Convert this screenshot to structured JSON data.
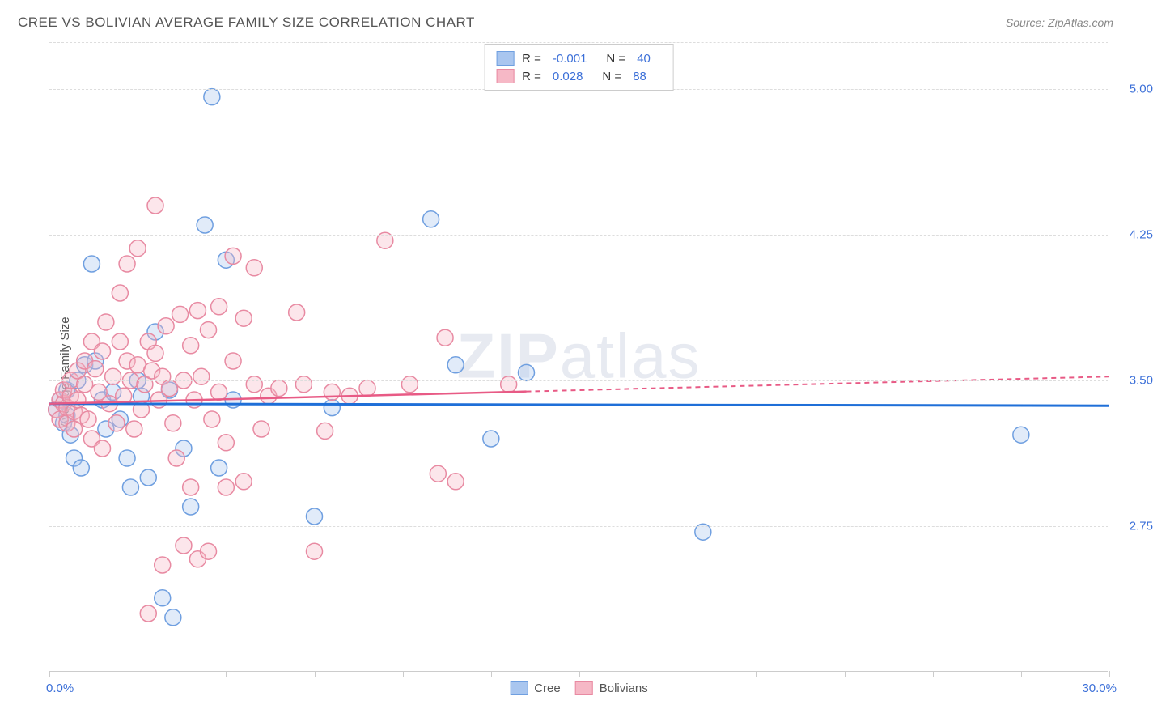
{
  "title": "CREE VS BOLIVIAN AVERAGE FAMILY SIZE CORRELATION CHART",
  "source_label": "Source: ZipAtlas.com",
  "ylabel": "Average Family Size",
  "watermark": "ZIPatlas",
  "chart": {
    "type": "scatter",
    "background_color": "#ffffff",
    "grid_color": "#dddddd",
    "axis_color": "#cccccc",
    "xlim": [
      0,
      30
    ],
    "ylim": [
      2.0,
      5.25
    ],
    "y_gridlines": [
      2.75,
      3.5,
      4.25,
      5.0
    ],
    "ytick_labels": [
      "2.75",
      "3.50",
      "4.25",
      "5.00"
    ],
    "xtick_positions": [
      0,
      2.5,
      5,
      7.5,
      10,
      12.5,
      15,
      17.5,
      20,
      22.5,
      25,
      27.5,
      30
    ],
    "xaxis_min_label": "0.0%",
    "xaxis_max_label": "30.0%",
    "ytick_color": "#3b6fd8",
    "xtick_color": "#3b6fd8",
    "marker_radius": 10,
    "marker_fill_opacity": 0.35,
    "marker_stroke_width": 1.5,
    "series": [
      {
        "name": "Cree",
        "color_fill": "#a9c6ef",
        "color_stroke": "#6f9fe0",
        "trend_color": "#1f6fd8",
        "trend_width": 3,
        "r_value": "-0.001",
        "n_value": "40",
        "trend": {
          "x1": 0,
          "y1": 3.38,
          "x2": 30,
          "y2": 3.37
        },
        "trend_dash_after_x": 30,
        "points": [
          [
            0.2,
            3.35
          ],
          [
            0.3,
            3.4
          ],
          [
            0.4,
            3.28
          ],
          [
            0.5,
            3.32
          ],
          [
            0.5,
            3.45
          ],
          [
            0.6,
            3.22
          ],
          [
            0.7,
            3.1
          ],
          [
            0.8,
            3.5
          ],
          [
            0.9,
            3.05
          ],
          [
            1.0,
            3.58
          ],
          [
            1.2,
            4.1
          ],
          [
            1.3,
            3.6
          ],
          [
            1.5,
            3.4
          ],
          [
            1.6,
            3.25
          ],
          [
            1.8,
            3.44
          ],
          [
            2.0,
            3.3
          ],
          [
            2.2,
            3.1
          ],
          [
            2.3,
            2.95
          ],
          [
            2.5,
            3.5
          ],
          [
            2.6,
            3.42
          ],
          [
            2.8,
            3.0
          ],
          [
            3.0,
            3.75
          ],
          [
            3.2,
            2.38
          ],
          [
            3.5,
            2.28
          ],
          [
            3.4,
            3.45
          ],
          [
            3.8,
            3.15
          ],
          [
            4.0,
            2.85
          ],
          [
            4.4,
            4.3
          ],
          [
            4.6,
            4.96
          ],
          [
            4.8,
            3.05
          ],
          [
            5.0,
            4.12
          ],
          [
            5.2,
            3.4
          ],
          [
            7.5,
            2.8
          ],
          [
            8.0,
            3.36
          ],
          [
            10.8,
            4.33
          ],
          [
            11.5,
            3.58
          ],
          [
            12.5,
            3.2
          ],
          [
            13.5,
            3.54
          ],
          [
            18.5,
            2.72
          ],
          [
            27.5,
            3.22
          ]
        ]
      },
      {
        "name": "Bolivians",
        "color_fill": "#f6b8c6",
        "color_stroke": "#e88aa2",
        "trend_color": "#e85a85",
        "trend_width": 2.5,
        "r_value": "0.028",
        "n_value": "88",
        "trend": {
          "x1": 0,
          "y1": 3.38,
          "x2": 30,
          "y2": 3.52
        },
        "trend_dash_after_x": 13.5,
        "points": [
          [
            0.2,
            3.35
          ],
          [
            0.3,
            3.4
          ],
          [
            0.3,
            3.3
          ],
          [
            0.4,
            3.38
          ],
          [
            0.4,
            3.45
          ],
          [
            0.5,
            3.36
          ],
          [
            0.5,
            3.28
          ],
          [
            0.6,
            3.42
          ],
          [
            0.6,
            3.5
          ],
          [
            0.7,
            3.34
          ],
          [
            0.7,
            3.25
          ],
          [
            0.8,
            3.4
          ],
          [
            0.8,
            3.55
          ],
          [
            0.9,
            3.32
          ],
          [
            1.0,
            3.48
          ],
          [
            1.0,
            3.6
          ],
          [
            1.1,
            3.3
          ],
          [
            1.2,
            3.7
          ],
          [
            1.2,
            3.2
          ],
          [
            1.3,
            3.56
          ],
          [
            1.4,
            3.44
          ],
          [
            1.5,
            3.65
          ],
          [
            1.5,
            3.15
          ],
          [
            1.6,
            3.8
          ],
          [
            1.7,
            3.38
          ],
          [
            1.8,
            3.52
          ],
          [
            1.9,
            3.28
          ],
          [
            2.0,
            3.7
          ],
          [
            2.0,
            3.95
          ],
          [
            2.1,
            3.42
          ],
          [
            2.2,
            3.6
          ],
          [
            2.2,
            4.1
          ],
          [
            2.3,
            3.5
          ],
          [
            2.4,
            3.25
          ],
          [
            2.5,
            3.58
          ],
          [
            2.5,
            4.18
          ],
          [
            2.6,
            3.35
          ],
          [
            2.7,
            3.48
          ],
          [
            2.8,
            3.7
          ],
          [
            2.8,
            2.3
          ],
          [
            2.9,
            3.55
          ],
          [
            3.0,
            3.64
          ],
          [
            3.0,
            4.4
          ],
          [
            3.1,
            3.4
          ],
          [
            3.2,
            3.52
          ],
          [
            3.2,
            2.55
          ],
          [
            3.3,
            3.78
          ],
          [
            3.4,
            3.46
          ],
          [
            3.5,
            3.28
          ],
          [
            3.6,
            3.1
          ],
          [
            3.7,
            3.84
          ],
          [
            3.8,
            3.5
          ],
          [
            3.8,
            2.65
          ],
          [
            4.0,
            3.68
          ],
          [
            4.0,
            2.95
          ],
          [
            4.1,
            3.4
          ],
          [
            4.2,
            3.86
          ],
          [
            4.2,
            2.58
          ],
          [
            4.3,
            3.52
          ],
          [
            4.5,
            3.76
          ],
          [
            4.5,
            2.62
          ],
          [
            4.6,
            3.3
          ],
          [
            4.8,
            3.88
          ],
          [
            4.8,
            3.44
          ],
          [
            5.0,
            3.18
          ],
          [
            5.0,
            2.95
          ],
          [
            5.2,
            3.6
          ],
          [
            5.2,
            4.14
          ],
          [
            5.5,
            3.82
          ],
          [
            5.5,
            2.98
          ],
          [
            5.8,
            3.48
          ],
          [
            5.8,
            4.08
          ],
          [
            6.0,
            3.25
          ],
          [
            6.2,
            3.42
          ],
          [
            6.5,
            3.46
          ],
          [
            7.0,
            3.85
          ],
          [
            7.2,
            3.48
          ],
          [
            7.5,
            2.62
          ],
          [
            7.8,
            3.24
          ],
          [
            8.0,
            3.44
          ],
          [
            8.5,
            3.42
          ],
          [
            9.0,
            3.46
          ],
          [
            9.5,
            4.22
          ],
          [
            10.2,
            3.48
          ],
          [
            11.0,
            3.02
          ],
          [
            11.2,
            3.72
          ],
          [
            11.5,
            2.98
          ],
          [
            13.0,
            3.48
          ]
        ]
      }
    ]
  },
  "legend_bottom": [
    {
      "label": "Cree",
      "fill": "#a9c6ef",
      "stroke": "#6f9fe0"
    },
    {
      "label": "Bolivians",
      "fill": "#f6b8c6",
      "stroke": "#e88aa2"
    }
  ]
}
